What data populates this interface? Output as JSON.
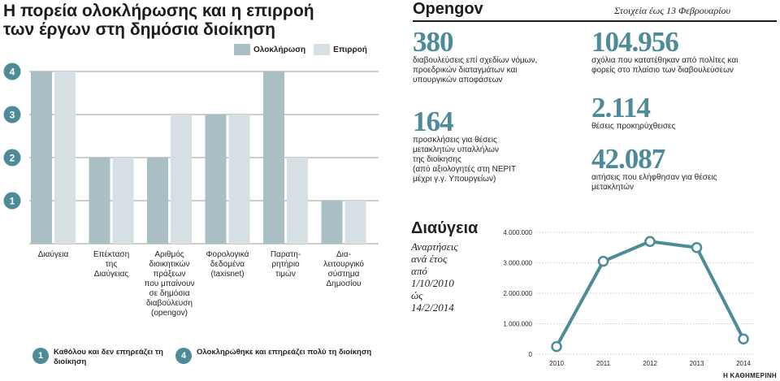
{
  "left": {
    "title_line1": "Η πορεία ολοκλήρωσης και η επιρροή",
    "title_line2": "των έργων στη δημόσια διοίκηση",
    "legend": {
      "completion": "Ολοκλήρωση",
      "influence": "Επιρροή"
    },
    "key_1_num": "1",
    "key_1_text": "Καθόλου και δεν επηρεάζει τη διοίκηση",
    "key_4_num": "4",
    "key_4_text": "Ολοκληρώθηκε και επηρεάζει πολύ τη διοίκηση"
  },
  "right": {
    "title": "Opengov",
    "date": "Στοιχεία έως 13 Φεβρουαρίου",
    "stats": [
      {
        "value": "380",
        "desc": [
          "διαβουλεύσεις επί σχεδίων νόμων,",
          "προεδρικών διαταγμάτων και",
          "υπουργικών αποφάσεων"
        ]
      },
      {
        "value": "164",
        "desc": [
          "προσκλήσεις για θέσεις",
          "μετακλητών υπαλλήλων",
          "της διοίκησης",
          "(από αξιολογητές στη ΝΕΡΙΤ",
          "μέχρι γ.γ. Υπουργείων)"
        ]
      },
      {
        "value": "104.956",
        "desc": [
          "σχόλια που κατατέθηκαν από πολίτες και",
          "φορείς στο πλαίσιο των διαβουλεύσεων"
        ]
      },
      {
        "value": "2.114",
        "desc": [
          "θέσεις προκηρύχθεισες"
        ]
      },
      {
        "value": "42.087",
        "desc": [
          "αιτήσεις που ελήφθησαν για θέσεις",
          "μετακλητών"
        ]
      }
    ],
    "diavgeia_title": "Διαύγεια",
    "diavgeia_sub": [
      "Αναρτήσεις",
      "ανά έτος",
      "από",
      "1/10/2010",
      "ώς",
      "14/2/2014"
    ]
  },
  "credit": "Η ΚΑΘΗΜΕΡΙΝΗ",
  "colors": {
    "completion": "#a9bfc4",
    "influence": "#d5dfe4",
    "accent": "#4e8b98",
    "grid": "#7a7a7a"
  },
  "chart_data": [
    {
      "type": "bar",
      "categories": [
        [
          "Διαύγεια"
        ],
        [
          "Επέκταση",
          "της",
          "Διαύγειας"
        ],
        [
          "Αριθμός",
          "διοικητικών",
          "πράξεων",
          "που μπαίνουν",
          "σε δημόσια",
          "διαβούλευση",
          "(opengov)"
        ],
        [
          "Φορολογικά",
          "δεδομένα",
          "(taxisnet)"
        ],
        [
          "Παρατη-",
          "ρητήριο",
          "τιμών"
        ],
        [
          "Δια-",
          "λειτουργικό",
          "σύστημα",
          "Δημοσίου"
        ]
      ],
      "series": [
        {
          "name": "Ολοκλήρωση",
          "values": [
            4,
            2,
            2,
            3,
            4,
            1
          ]
        },
        {
          "name": "Επιρροή",
          "values": [
            4,
            2,
            3,
            3,
            2,
            1
          ]
        }
      ],
      "yticks": [
        "1",
        "2",
        "3",
        "4"
      ],
      "ylim": [
        0,
        4
      ],
      "grid": true,
      "legend": "top-right"
    },
    {
      "type": "line",
      "x": [
        "2010",
        "2011",
        "2012",
        "2013",
        "2014"
      ],
      "series": [
        {
          "values": [
            250000,
            3050000,
            3700000,
            3500000,
            500000
          ]
        }
      ],
      "yticks": [
        "0",
        "1.000.000",
        "2.000.000",
        "3.000.000",
        "4.000.000"
      ],
      "ylim": [
        0,
        4000000
      ],
      "grid": true
    }
  ]
}
